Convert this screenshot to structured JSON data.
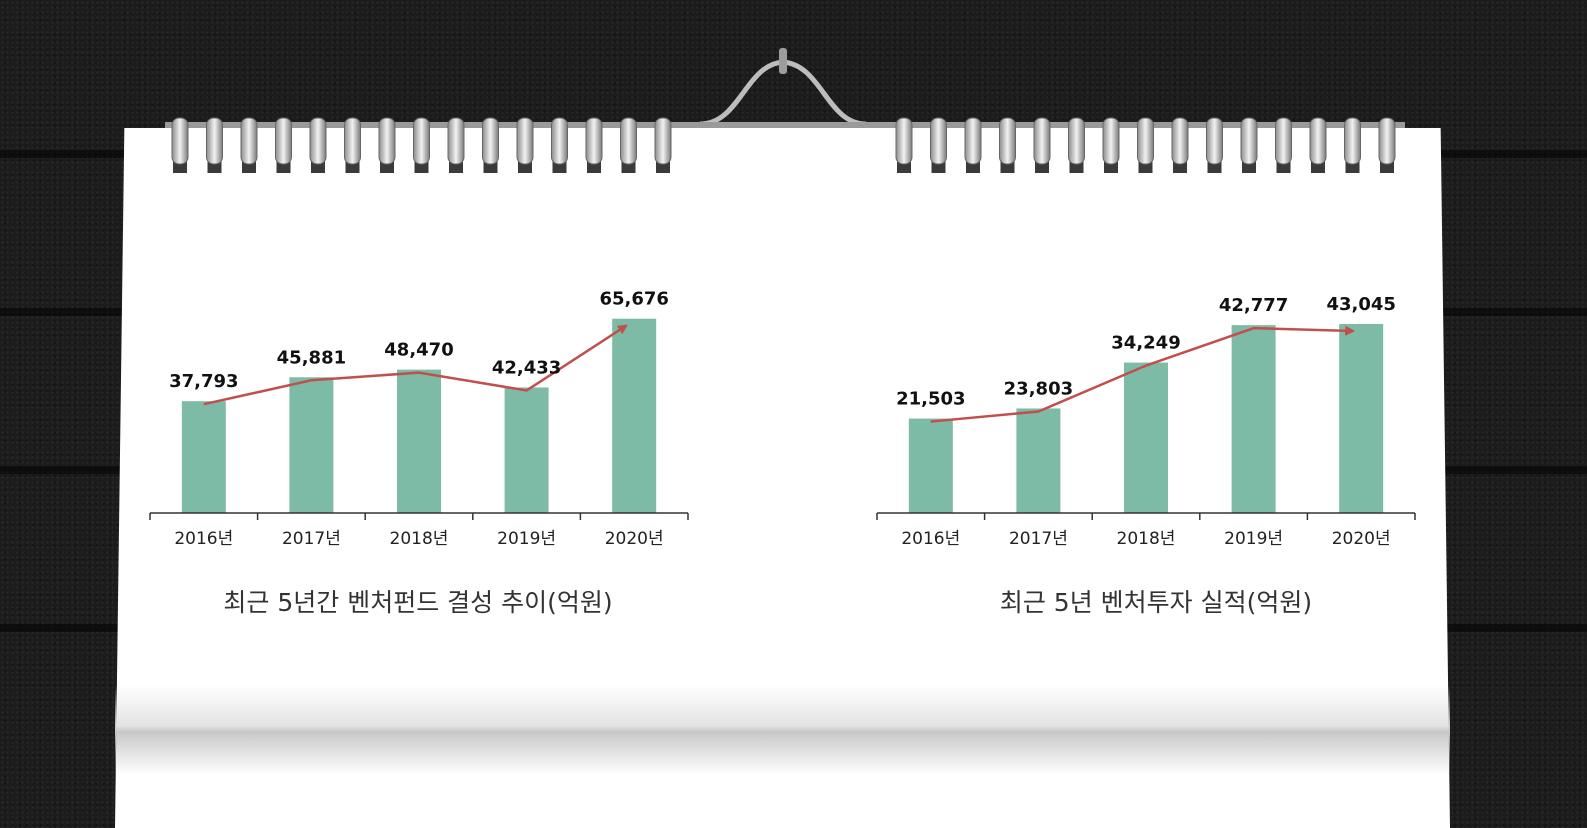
{
  "colors": {
    "bar": "#7dbba7",
    "trend": "#c0504d",
    "axis": "#333333",
    "paper": "#ffffff"
  },
  "chart_data": [
    {
      "type": "bar",
      "title": "최근 5년간 벤처펀드 결성 추이(억원)",
      "categories": [
        "2016년",
        "2017년",
        "2018년",
        "2019년",
        "2020년"
      ],
      "values": [
        37793,
        45881,
        48470,
        42433,
        65676
      ],
      "value_labels": [
        "37,793",
        "45,881",
        "48,470",
        "42,433",
        "65,676"
      ],
      "trend_line": true,
      "ylim": [
        0,
        72000
      ]
    },
    {
      "type": "bar",
      "title": "최근 5년 벤처투자 실적(억원)",
      "categories": [
        "2016년",
        "2017년",
        "2018년",
        "2019년",
        "2020년"
      ],
      "values": [
        21503,
        23803,
        34249,
        42777,
        43045
      ],
      "value_labels": [
        "21,503",
        "23,803",
        "34,249",
        "42,777",
        "43,045"
      ],
      "trend_line": true,
      "ylim": [
        0,
        48500
      ]
    }
  ]
}
